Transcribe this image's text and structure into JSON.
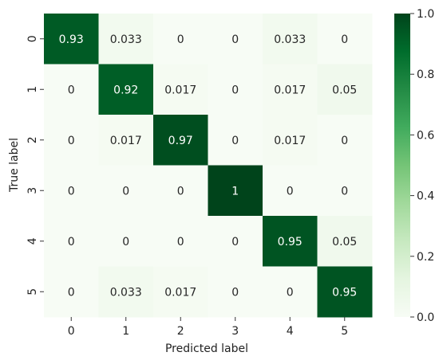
{
  "chart_data": {
    "type": "heatmap",
    "x_categories": [
      "0",
      "1",
      "2",
      "3",
      "4",
      "5"
    ],
    "y_categories": [
      "0",
      "1",
      "2",
      "3",
      "4",
      "5"
    ],
    "values": [
      [
        0.93,
        0.033,
        0,
        0,
        0.033,
        0
      ],
      [
        0,
        0.92,
        0.017,
        0,
        0.017,
        0.05
      ],
      [
        0,
        0.017,
        0.97,
        0,
        0.017,
        0
      ],
      [
        0,
        0,
        0,
        1,
        0,
        0
      ],
      [
        0,
        0,
        0,
        0,
        0.95,
        0.05
      ],
      [
        0,
        0.033,
        0.017,
        0,
        0,
        0.95
      ]
    ],
    "cell_labels": [
      [
        "0.93",
        "0.033",
        "0",
        "0",
        "0.033",
        "0"
      ],
      [
        "0",
        "0.92",
        "0.017",
        "0",
        "0.017",
        "0.05"
      ],
      [
        "0",
        "0.017",
        "0.97",
        "0",
        "0.017",
        "0"
      ],
      [
        "0",
        "0",
        "0",
        "1",
        "0",
        "0"
      ],
      [
        "0",
        "0",
        "0",
        "0",
        "0.95",
        "0.05"
      ],
      [
        "0",
        "0.033",
        "0.017",
        "0",
        "0",
        "0.95"
      ]
    ],
    "xlabel": "Predicted label",
    "ylabel": "True label",
    "colorbar": {
      "range": [
        0.0,
        1.0
      ],
      "ticks": [
        0.0,
        0.2,
        0.4,
        0.6,
        0.8,
        1.0
      ],
      "tick_labels": [
        "0.0",
        "0.2",
        "0.4",
        "0.6",
        "0.8",
        "1.0"
      ],
      "colormap": "Greens",
      "low_color": "#f7fcf5",
      "high_color": "#00441b"
    }
  }
}
